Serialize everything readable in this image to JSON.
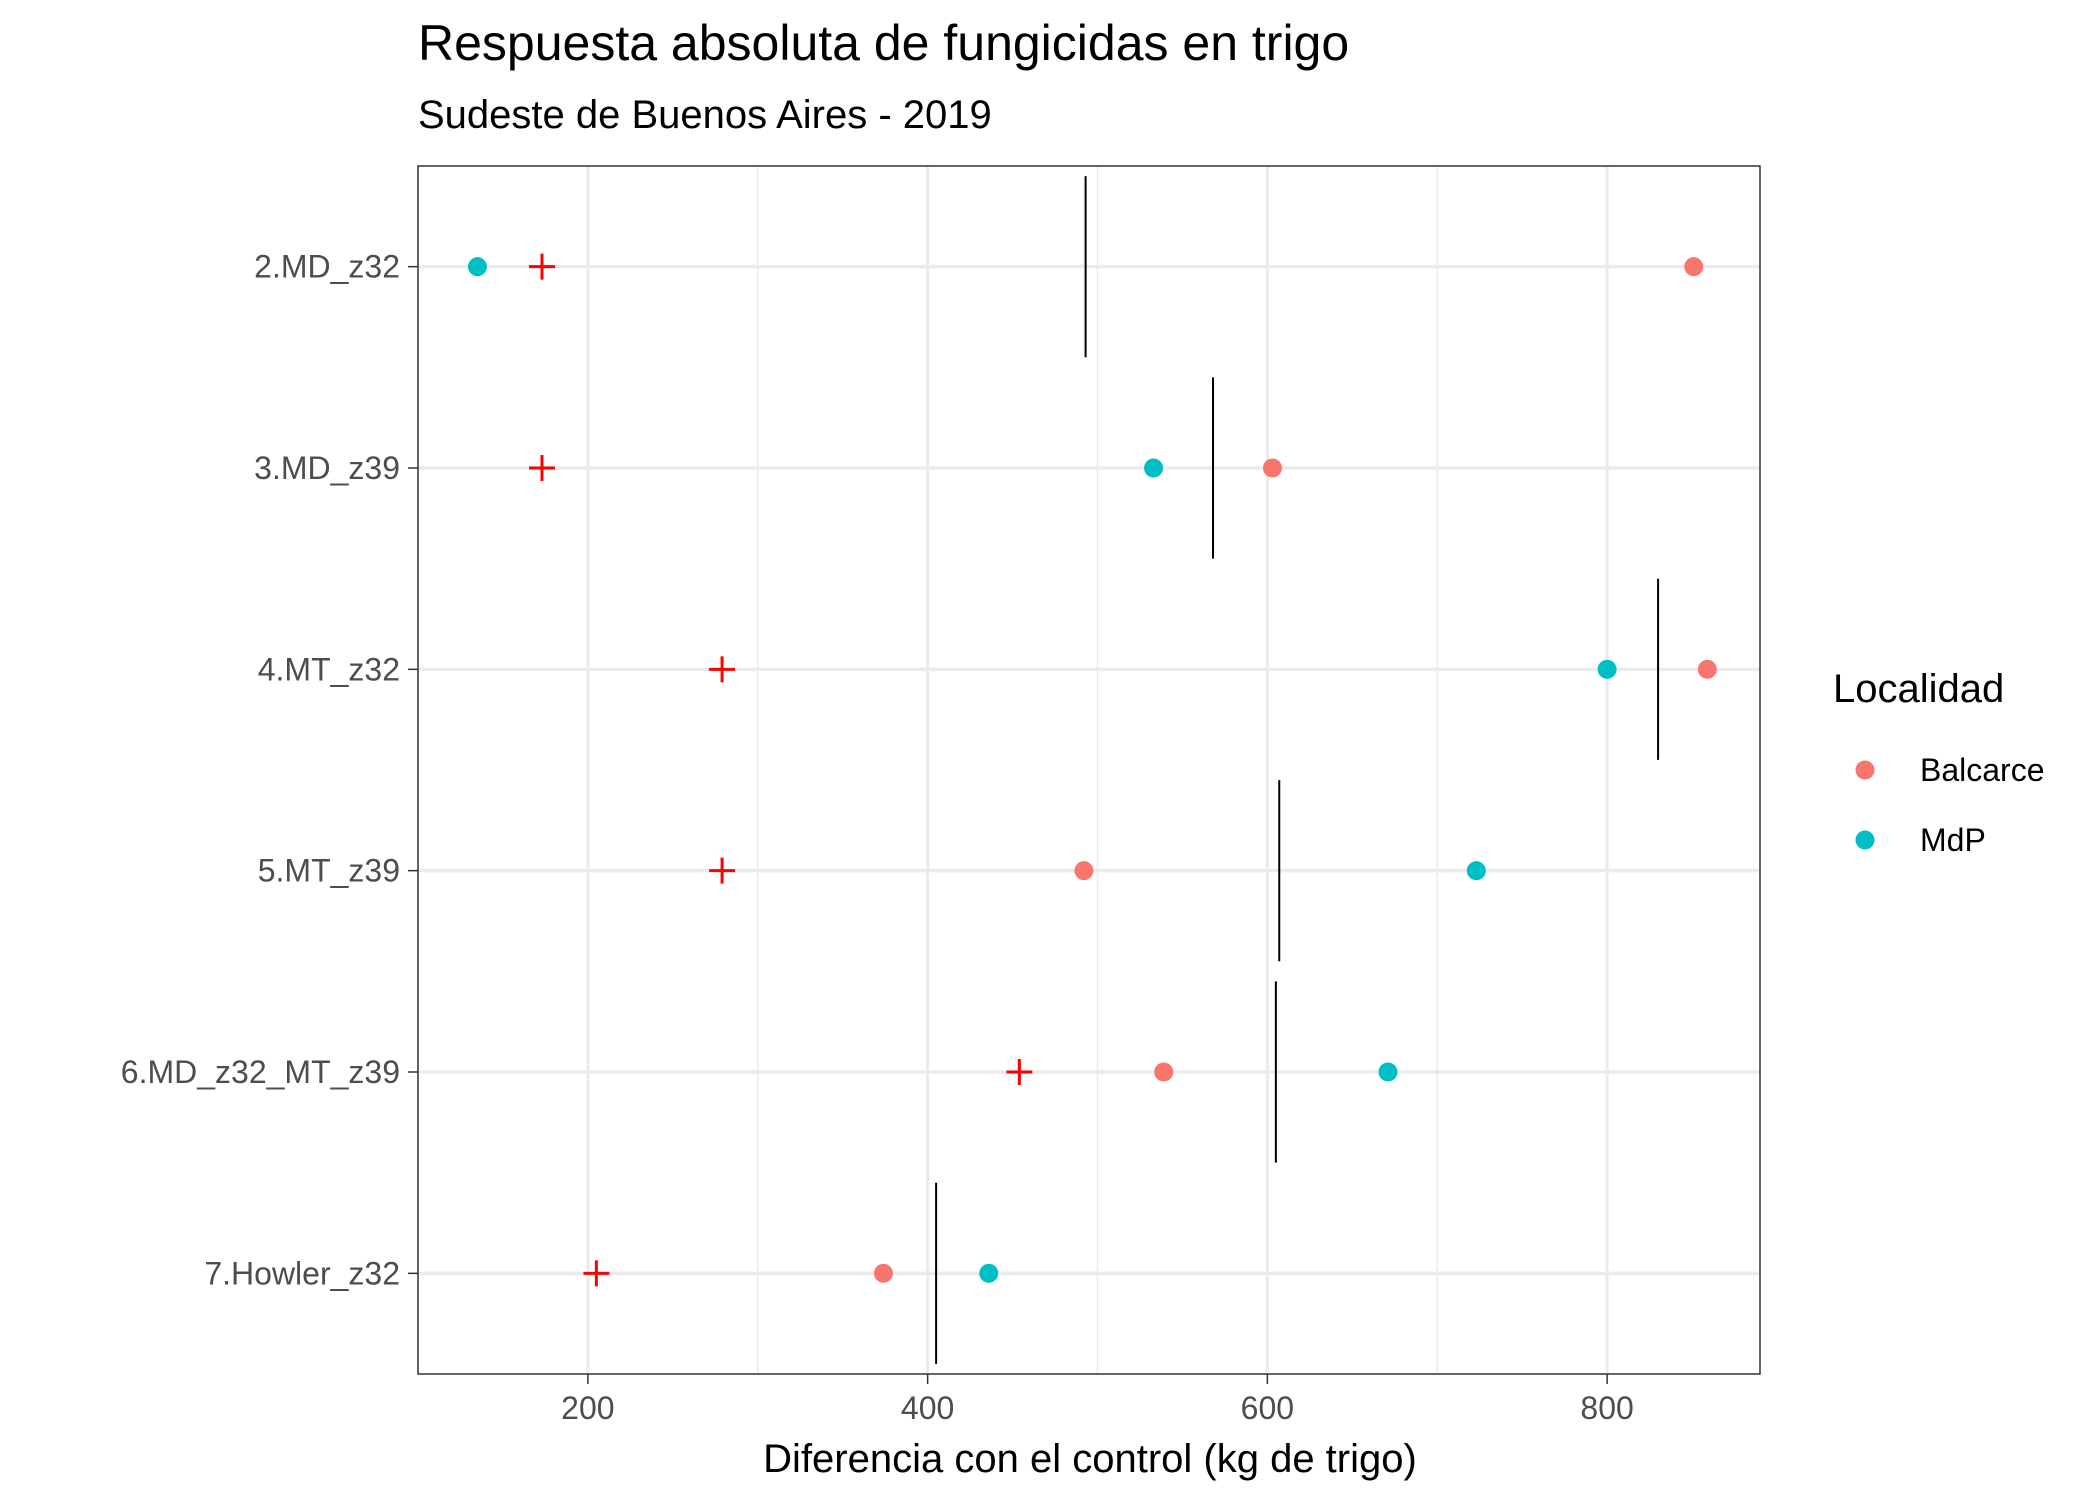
{
  "chart_data": {
    "type": "scatter",
    "title": "Respuesta absoluta de fungicidas en trigo",
    "subtitle": "Sudeste de Buenos Aires - 2019",
    "xlabel": "Diferencia con el control (kg de trigo)",
    "ylabel": "",
    "xlim": [
      100,
      890
    ],
    "x_ticks": [
      200,
      400,
      600,
      800
    ],
    "categories": [
      "2.MD_z32",
      "3.MD_z39",
      "4.MT_z32",
      "5.MT_z39",
      "6.MD_z32_MT_z39",
      "7.Howler_z32"
    ],
    "grid": true,
    "legend": {
      "title": "Localidad",
      "position": "right"
    },
    "series": [
      {
        "name": "Balcarce",
        "color": "#F8766D",
        "marker": "point",
        "values": [
          851,
          603,
          859,
          492,
          539,
          374
        ]
      },
      {
        "name": "MdP",
        "color": "#00BFC4",
        "marker": "point",
        "values": [
          135,
          533,
          800,
          723,
          671,
          436
        ]
      }
    ],
    "plus_markers": {
      "color": "#FF0000",
      "values": [
        173,
        173,
        279,
        279,
        454,
        205
      ]
    },
    "mean_lines": {
      "color": "#000000",
      "values": [
        493,
        568,
        830,
        607,
        605,
        405
      ]
    }
  }
}
